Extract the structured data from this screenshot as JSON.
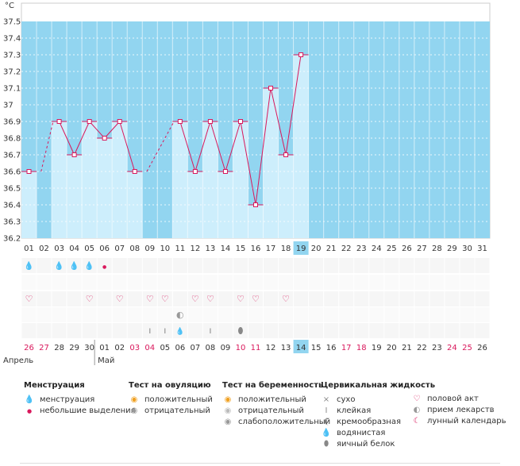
{
  "chart_data": {
    "type": "bar",
    "unit": "°C",
    "ylim": [
      36.2,
      37.5
    ],
    "yticks": [
      "37.5",
      "37.4",
      "37.3",
      "37.2",
      "37.1",
      "37",
      "36.9",
      "36.8",
      "36.7",
      "36.6",
      "36.5",
      "36.4",
      "36.3",
      "36.2"
    ],
    "cycle_days": [
      "01",
      "02",
      "03",
      "04",
      "05",
      "06",
      "07",
      "08",
      "09",
      "10",
      "11",
      "12",
      "13",
      "14",
      "15",
      "16",
      "17",
      "18",
      "19",
      "20",
      "21",
      "22",
      "23",
      "24",
      "25",
      "26",
      "27",
      "28",
      "29",
      "30",
      "31"
    ],
    "temperatures": [
      36.6,
      null,
      36.9,
      36.7,
      36.9,
      36.8,
      36.9,
      36.6,
      null,
      null,
      36.9,
      36.6,
      36.9,
      36.6,
      36.9,
      36.4,
      37.1,
      36.7,
      37.3,
      null,
      null,
      null,
      null,
      null,
      null,
      null,
      null,
      null,
      null,
      null,
      null
    ],
    "interpolated_gaps": [
      [
        0,
        2
      ],
      [
        7,
        10
      ]
    ],
    "current_index": 18,
    "highlight_band": [
      36.2,
      37.5
    ],
    "calendar_dates": [
      "26",
      "27",
      "28",
      "29",
      "30",
      "01",
      "02",
      "03",
      "04",
      "05",
      "06",
      "07",
      "08",
      "09",
      "10",
      "11",
      "12",
      "13",
      "14",
      "15",
      "16",
      "17",
      "18",
      "19",
      "20",
      "21",
      "22",
      "23",
      "24",
      "25",
      "26"
    ],
    "weekend_dates_idx": [
      0,
      1,
      7,
      8,
      14,
      15,
      21,
      22,
      28,
      29
    ],
    "months": [
      {
        "label": "Апрель",
        "start": 0
      },
      {
        "label": "Май",
        "start": 5
      }
    ],
    "markers": {
      "menstruation": [
        0,
        2,
        3,
        4
      ],
      "spotting": [
        5
      ],
      "intercourse": [
        0,
        4,
        6,
        8,
        9,
        11,
        12,
        14,
        15,
        17
      ],
      "medication": [
        10
      ],
      "sticky": [
        8,
        9,
        12
      ],
      "watery": [
        10
      ],
      "egg_white": [
        14
      ]
    }
  },
  "legend": {
    "menstruation": {
      "title": "Менструация",
      "items": [
        "менструация",
        "небольшие выделения"
      ]
    },
    "ovulation_test": {
      "title": "Тест на овуляцию",
      "items": [
        "положительный",
        "отрицательный"
      ]
    },
    "pregnancy_test": {
      "title": "Тест на беременность",
      "items": [
        "положительный",
        "отрицательный",
        "слабоположительный"
      ]
    },
    "cervical": {
      "title": "Цервикальная жидкость",
      "items": [
        "сухо",
        "клейкая",
        "кремообразная",
        "водянистая",
        "яичный белок"
      ]
    },
    "other": {
      "items": [
        "половой акт",
        "прием лекарств",
        "лунный календарь"
      ]
    }
  },
  "colors": {
    "bg_band": "#92d5f0",
    "bar": "#cdeefc",
    "line": "#d9185c",
    "weekend": "#d9185c",
    "today": "#92d5f0"
  }
}
